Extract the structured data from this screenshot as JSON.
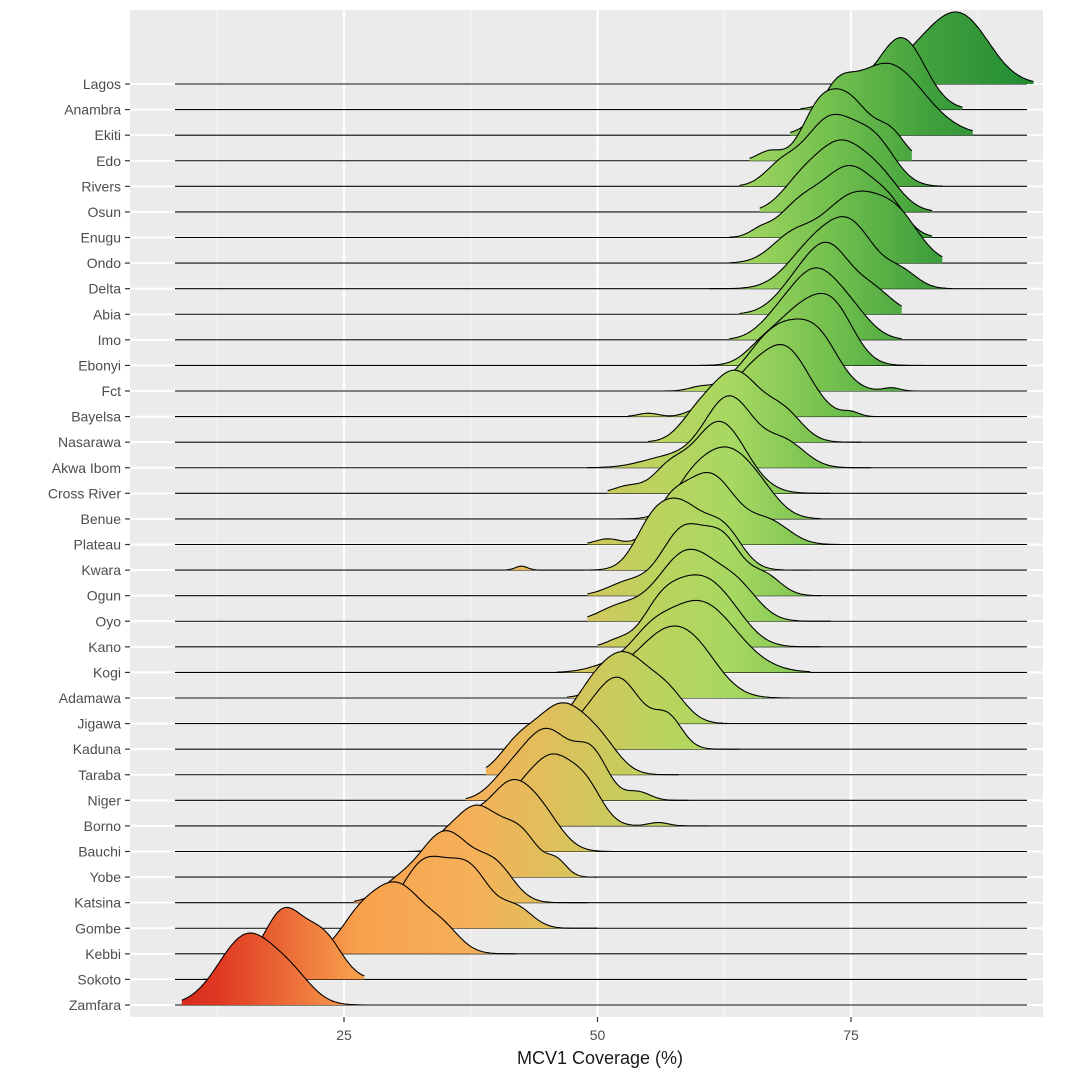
{
  "chart_data": {
    "type": "ridgeline",
    "title": "",
    "xlabel": "MCV1 Coverage (%)",
    "ylabel": "",
    "xlim": [
      3,
      97
    ],
    "xticks": [
      25,
      50,
      75
    ],
    "grid": true,
    "categories": [
      "Lagos",
      "Anambra",
      "Ekiti",
      "Edo",
      "Rivers",
      "Osun",
      "Enugu",
      "Ondo",
      "Delta",
      "Abia",
      "Imo",
      "Ebonyi",
      "Fct",
      "Bayelsa",
      "Nasarawa",
      "Akwa Ibom",
      "Cross River",
      "Benue",
      "Plateau",
      "Kwara",
      "Ogun",
      "Oyo",
      "Kano",
      "Kogi",
      "Adamawa",
      "Jigawa",
      "Kaduna",
      "Taraba",
      "Niger",
      "Borno",
      "Bauchi",
      "Yobe",
      "Katsina",
      "Gombe",
      "Kebbi",
      "Sokoto",
      "Zamfara"
    ],
    "series": [
      {
        "name": "Lagos",
        "peaks": [
          [
            83.5,
            3.4,
            1.0
          ],
          [
            86.5,
            2.6,
            0.85
          ],
          [
            76.5,
            1.0,
            0.15
          ]
        ],
        "range": [
          74,
          93
        ]
      },
      {
        "name": "Anambra",
        "peaks": [
          [
            80,
            2.3,
            1.0
          ],
          [
            75,
            2.0,
            0.25
          ]
        ],
        "range": [
          70,
          86
        ]
      },
      {
        "name": "Ekiti",
        "peaks": [
          [
            78.5,
            3.6,
            1.0
          ],
          [
            73.5,
            1.6,
            0.4
          ]
        ],
        "range": [
          69,
          87
        ]
      },
      {
        "name": "Edo",
        "peaks": [
          [
            74.5,
            2.4,
            1.0
          ],
          [
            71.5,
            1.6,
            0.45
          ],
          [
            79,
            1.4,
            0.35
          ],
          [
            67,
            1.2,
            0.15
          ]
        ],
        "range": [
          65,
          81
        ]
      },
      {
        "name": "Rivers",
        "peaks": [
          [
            73,
            2.6,
            1.0
          ],
          [
            77.5,
            2.0,
            0.55
          ],
          [
            68,
            1.6,
            0.25
          ]
        ],
        "range": [
          64,
          84
        ]
      },
      {
        "name": "Osun",
        "peaks": [
          [
            74,
            2.4,
            1.0
          ],
          [
            78,
            2.0,
            0.45
          ],
          [
            70,
            2.0,
            0.4
          ]
        ],
        "range": [
          66,
          83
        ]
      },
      {
        "name": "Enugu",
        "peaks": [
          [
            75,
            2.6,
            1.0
          ],
          [
            70,
            2.2,
            0.45
          ],
          [
            79,
            1.6,
            0.3
          ],
          [
            66,
            1.0,
            0.08
          ]
        ],
        "range": [
          63,
          83
        ]
      },
      {
        "name": "Ondo",
        "peaks": [
          [
            75.5,
            3.4,
            1.0
          ],
          [
            69,
            2.0,
            0.3
          ],
          [
            80,
            2.0,
            0.35
          ]
        ],
        "range": [
          63,
          84
        ]
      },
      {
        "name": "Delta",
        "peaks": [
          [
            75,
            2.4,
            1.0
          ],
          [
            71,
            2.4,
            0.6
          ],
          [
            80,
            1.6,
            0.25
          ]
        ],
        "range": [
          61,
          85
        ]
      },
      {
        "name": "Abia",
        "peaks": [
          [
            73,
            2.0,
            1.0
          ],
          [
            70,
            2.2,
            0.6
          ],
          [
            77,
            2.0,
            0.45
          ]
        ],
        "range": [
          64,
          80
        ]
      },
      {
        "name": "Imo",
        "peaks": [
          [
            71.5,
            2.2,
            1.0
          ],
          [
            68,
            2.0,
            0.35
          ],
          [
            75,
            2.0,
            0.4
          ]
        ],
        "range": [
          63,
          80
        ]
      },
      {
        "name": "Ebonyi",
        "peaks": [
          [
            70,
            2.6,
            1.0
          ],
          [
            73.5,
            2.0,
            0.8
          ],
          [
            66,
            1.6,
            0.2
          ]
        ],
        "range": [
          60,
          82
        ]
      },
      {
        "name": "Fct",
        "peaks": [
          [
            68,
            3.0,
            1.0
          ],
          [
            72,
            2.0,
            0.55
          ],
          [
            79,
            0.8,
            0.05
          ],
          [
            60,
            1.0,
            0.05
          ]
        ],
        "range": [
          56,
          82
        ]
      },
      {
        "name": "Bayelsa",
        "peaks": [
          [
            68.5,
            2.4,
            1.0
          ],
          [
            64.5,
            2.0,
            0.45
          ],
          [
            60,
            1.2,
            0.1
          ],
          [
            75,
            0.8,
            0.06
          ],
          [
            55,
            1.0,
            0.05
          ]
        ],
        "range": [
          53,
          78
        ]
      },
      {
        "name": "Nasarawa",
        "peaks": [
          [
            63.5,
            2.6,
            1.0
          ],
          [
            68.5,
            1.8,
            0.35
          ],
          [
            59.5,
            1.6,
            0.2
          ]
        ],
        "range": [
          55,
          76
        ]
      },
      {
        "name": "Akwa Ibom",
        "peaks": [
          [
            63,
            2.4,
            1.0
          ],
          [
            68.5,
            2.0,
            0.35
          ],
          [
            57,
            2.6,
            0.15
          ]
        ],
        "range": [
          49,
          77
        ]
      },
      {
        "name": "Cross River",
        "peaks": [
          [
            62,
            2.6,
            1.0
          ],
          [
            57,
            1.6,
            0.3
          ],
          [
            53,
            1.4,
            0.1
          ]
        ],
        "range": [
          51,
          73
        ]
      },
      {
        "name": "Benue",
        "peaks": [
          [
            62.5,
            2.4,
            1.0
          ],
          [
            59,
            1.8,
            0.4
          ],
          [
            66,
            2.0,
            0.35
          ]
        ],
        "range": [
          52,
          72
        ]
      },
      {
        "name": "Plateau",
        "peaks": [
          [
            61,
            2.6,
            1.0
          ],
          [
            57,
            1.6,
            0.4
          ],
          [
            67,
            2.0,
            0.3
          ],
          [
            51,
            1.2,
            0.08
          ]
        ],
        "range": [
          49,
          74
        ]
      },
      {
        "name": "Kwara",
        "peaks": [
          [
            58,
            2.4,
            1.0
          ],
          [
            62.5,
            1.8,
            0.55
          ],
          [
            55,
            1.6,
            0.35
          ],
          [
            42.5,
            0.6,
            0.06
          ]
        ],
        "range": [
          41,
          71
        ]
      },
      {
        "name": "Ogun",
        "peaks": [
          [
            58.5,
            2.2,
            1.0
          ],
          [
            62.5,
            1.8,
            0.75
          ],
          [
            66.5,
            1.6,
            0.3
          ],
          [
            53,
            2.0,
            0.2
          ]
        ],
        "range": [
          49,
          72
        ]
      },
      {
        "name": "Oyo",
        "peaks": [
          [
            59,
            3.0,
            1.0
          ],
          [
            64,
            2.0,
            0.35
          ],
          [
            52,
            2.0,
            0.18
          ]
        ],
        "range": [
          49,
          73
        ]
      },
      {
        "name": "Kano",
        "peaks": [
          [
            59.5,
            2.6,
            1.0
          ],
          [
            56,
            1.8,
            0.45
          ],
          [
            63,
            2.2,
            0.4
          ],
          [
            52,
            1.2,
            0.1
          ]
        ],
        "range": [
          50,
          72
        ]
      },
      {
        "name": "Kogi",
        "peaks": [
          [
            60,
            3.6,
            1.0
          ],
          [
            55,
            2.0,
            0.3
          ],
          [
            51,
            2.0,
            0.08
          ]
        ],
        "range": [
          46,
          71
        ]
      },
      {
        "name": "Adamawa",
        "peaks": [
          [
            56.5,
            3.2,
            1.0
          ],
          [
            60,
            2.4,
            0.4
          ],
          [
            51.5,
            1.6,
            0.15
          ]
        ],
        "range": [
          47,
          69
        ]
      },
      {
        "name": "Jigawa",
        "peaks": [
          [
            52.5,
            2.6,
            1.0
          ],
          [
            57,
            1.8,
            0.35
          ],
          [
            49,
            1.6,
            0.2
          ]
        ],
        "range": [
          46,
          63
        ]
      },
      {
        "name": "Kaduna",
        "peaks": [
          [
            52,
            2.4,
            1.0
          ],
          [
            57,
            1.4,
            0.4
          ],
          [
            48,
            1.8,
            0.2
          ]
        ],
        "range": [
          43,
          64
        ]
      },
      {
        "name": "Taraba",
        "peaks": [
          [
            46.5,
            2.6,
            1.0
          ],
          [
            42,
            1.8,
            0.35
          ],
          [
            50.5,
            1.8,
            0.3
          ]
        ],
        "range": [
          39,
          58
        ]
      },
      {
        "name": "Niger",
        "peaks": [
          [
            45,
            2.4,
            1.0
          ],
          [
            49.5,
            1.6,
            0.6
          ],
          [
            41,
            1.8,
            0.25
          ],
          [
            54,
            1.2,
            0.12
          ]
        ],
        "range": [
          37,
          59
        ]
      },
      {
        "name": "Borno",
        "peaks": [
          [
            45.5,
            2.2,
            1.0
          ],
          [
            49,
            1.6,
            0.45
          ],
          [
            42,
            1.6,
            0.3
          ],
          [
            56,
            1.0,
            0.05
          ]
        ],
        "range": [
          38,
          61
        ]
      },
      {
        "name": "Bauchi",
        "peaks": [
          [
            41.5,
            2.4,
            1.0
          ],
          [
            37,
            1.6,
            0.35
          ],
          [
            45,
            1.8,
            0.3
          ]
        ],
        "range": [
          27,
          54
        ]
      },
      {
        "name": "Yobe",
        "peaks": [
          [
            38,
            2.4,
            1.0
          ],
          [
            42.5,
            1.8,
            0.55
          ],
          [
            34,
            1.6,
            0.3
          ],
          [
            46,
            1.0,
            0.2
          ]
        ],
        "range": [
          31,
          50
        ]
      },
      {
        "name": "Katsina",
        "peaks": [
          [
            35,
            2.6,
            1.0
          ],
          [
            40,
            1.8,
            0.45
          ],
          [
            30,
            1.8,
            0.2
          ]
        ],
        "range": [
          26,
          49
        ]
      },
      {
        "name": "Gombe",
        "peaks": [
          [
            33,
            2.4,
            1.0
          ],
          [
            37.5,
            2.0,
            0.8
          ],
          [
            42,
            1.6,
            0.3
          ]
        ],
        "range": [
          27,
          50
        ]
      },
      {
        "name": "Kebbi",
        "peaks": [
          [
            30,
            3.0,
            1.0
          ],
          [
            26,
            1.6,
            0.2
          ],
          [
            35,
            1.6,
            0.2
          ]
        ],
        "range": [
          22,
          42
        ]
      },
      {
        "name": "Sokoto",
        "peaks": [
          [
            19,
            2.0,
            1.0
          ],
          [
            23,
            1.8,
            0.6
          ],
          [
            15,
            1.2,
            0.15
          ]
        ],
        "range": [
          11,
          27
        ]
      },
      {
        "name": "Zamfara",
        "peaks": [
          [
            15.5,
            2.8,
            1.0
          ],
          [
            20,
            2.0,
            0.3
          ]
        ],
        "range": [
          9,
          28
        ]
      }
    ]
  }
}
